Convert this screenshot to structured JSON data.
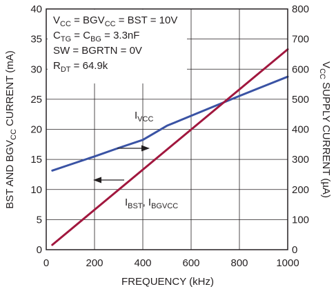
{
  "chart_data": {
    "type": "line",
    "title": "",
    "xlabel": "FREQUENCY (kHz)",
    "ylabel": "BST AND BGV",
    "ylabel_sub": "CC",
    "ylabel_tail": " CURRENT (mA)",
    "y2label": "V",
    "y2label_sub": "CC",
    "y2label_tail": " SUPPLY CURRENT (µA)",
    "xlim": [
      0,
      1000
    ],
    "ylim": [
      0,
      40
    ],
    "y2lim": [
      0,
      800
    ],
    "xticks": [
      0,
      200,
      400,
      600,
      800,
      1000
    ],
    "yticks": [
      0,
      5,
      10,
      15,
      20,
      25,
      30,
      35,
      40
    ],
    "y2ticks": [
      0,
      100,
      200,
      300,
      400,
      500,
      600,
      700,
      800
    ],
    "grid": true,
    "colors": {
      "axis": "#231f20",
      "grid": "#231f20",
      "ivcc": "#3a53a4",
      "ibst": "#a1173e"
    },
    "series": [
      {
        "name": "I",
        "name_sub": "VCC",
        "axis": "right",
        "color": "#3a53a4",
        "x": [
          25,
          100,
          200,
          300,
          400,
          500,
          600,
          700,
          800,
          900,
          1000
        ],
        "y": [
          263,
          283,
          310,
          338,
          365,
          412,
          445,
          478,
          511,
          543,
          575
        ]
      },
      {
        "name": "I",
        "name_sub": "BST",
        "name_sep": ", I",
        "name_sub2": "BGVCC",
        "axis": "left",
        "color": "#a1173e",
        "x": [
          25,
          1000
        ],
        "y": [
          0.8,
          33.3
        ]
      }
    ],
    "annotations": {
      "conditions": [
        {
          "main": "V",
          "sub": "CC",
          "rest": " = BGV",
          "sub2": "CC",
          "rest2": " = BST = 10V"
        },
        {
          "main": "C",
          "sub": "TG",
          "rest": " = C",
          "sub2": "BG",
          "rest2": " = 3.3nF"
        },
        {
          "main": "SW = BGRTN = 0V",
          "sub": "",
          "rest": "",
          "sub2": "",
          "rest2": ""
        },
        {
          "main": "R",
          "sub": "DT",
          "rest": " = 64.9k",
          "sub2": "",
          "rest2": ""
        }
      ],
      "arrows": [
        {
          "direction": "right",
          "points_to": "right-axis"
        },
        {
          "direction": "left",
          "points_to": "left-axis"
        }
      ]
    }
  }
}
